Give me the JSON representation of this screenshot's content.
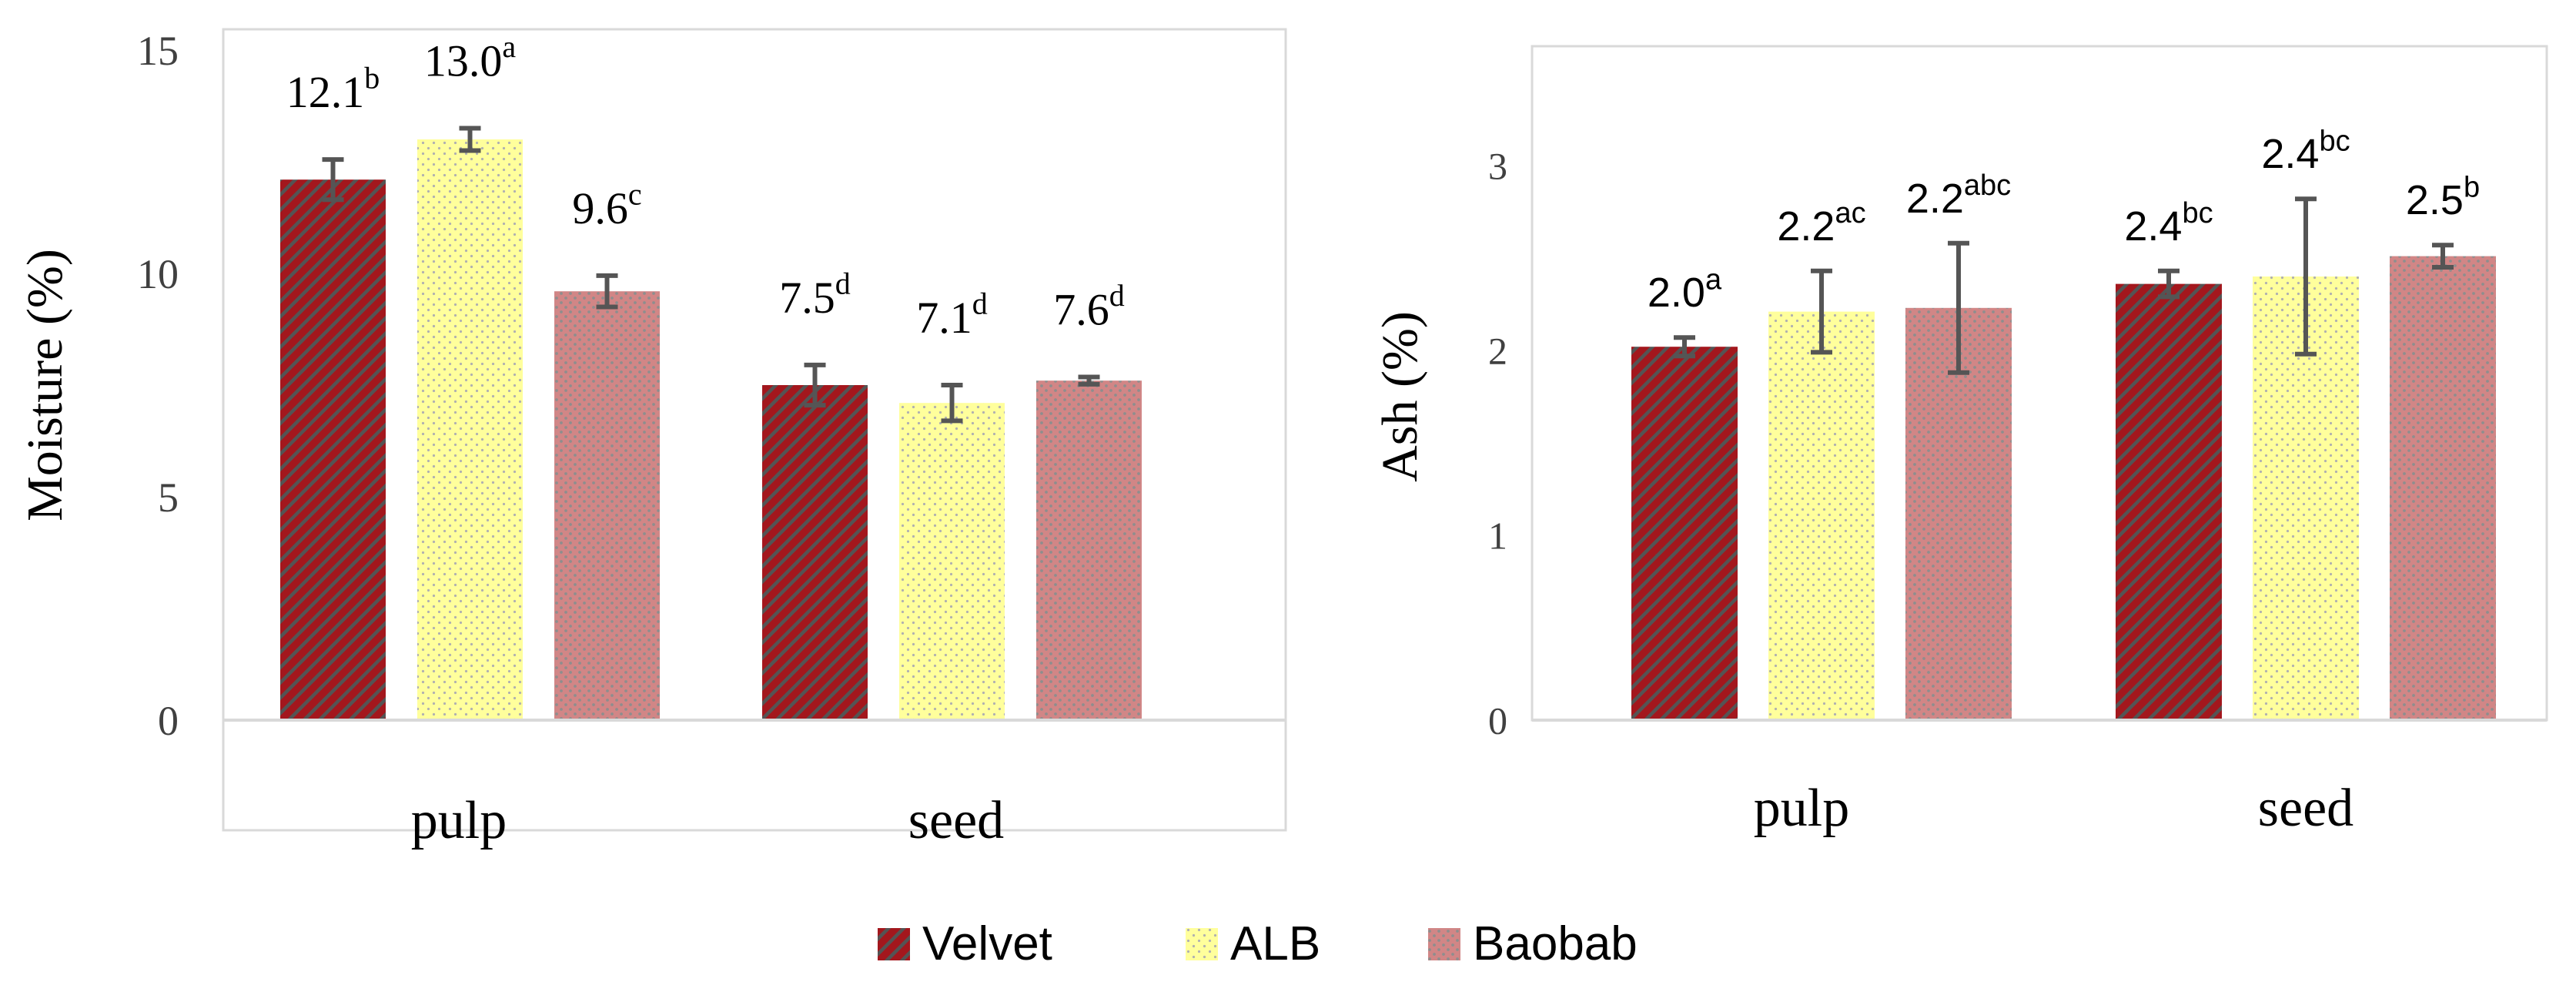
{
  "legend": [
    "Velvet",
    "ALB",
    "Baobab"
  ],
  "colors": {
    "velvet_dark": "#a3171d",
    "velvet_light": "#545454",
    "alb_fill": "#ffff9c",
    "alb_dot": "#b0b0b0",
    "baobab_fill": "#d18686",
    "baobab_dot": "#8e8e8e",
    "error_bar": "#555555",
    "axis_line": "#d9d9d9",
    "frame": "#d9d9d9"
  },
  "chart_data": [
    {
      "type": "bar",
      "title": "",
      "xlabel": "",
      "ylabel": "Moisture (%)",
      "ylim": [
        0,
        15
      ],
      "yticks": [
        "0",
        "5",
        "10",
        "15"
      ],
      "grid": false,
      "legend_position": "bottom",
      "categories": [
        "pulp",
        "seed"
      ],
      "series": [
        {
          "name": "Velvet",
          "values": [
            12.1,
            7.5
          ],
          "errors": [
            0.45,
            0.45
          ],
          "labels": [
            "12.1",
            "7.5"
          ],
          "superscripts": [
            "b",
            "d"
          ]
        },
        {
          "name": "ALB",
          "values": [
            13.0,
            7.1
          ],
          "errors": [
            0.25,
            0.4
          ],
          "labels": [
            "13.0",
            "7.1"
          ],
          "superscripts": [
            "a",
            "d"
          ]
        },
        {
          "name": "Baobab",
          "values": [
            9.6,
            7.6
          ],
          "errors": [
            0.35,
            0.08
          ],
          "labels": [
            "9.6",
            "7.6"
          ],
          "superscripts": [
            "c",
            "d"
          ]
        }
      ]
    },
    {
      "type": "bar",
      "title": "",
      "xlabel": "",
      "ylabel": "Ash (%)",
      "ylim": [
        0,
        3.5
      ],
      "yticks": [
        "0",
        "1",
        "2",
        "3"
      ],
      "grid": false,
      "legend_position": "bottom",
      "categories": [
        "pulp",
        "seed"
      ],
      "series": [
        {
          "name": "Velvet",
          "values": [
            2.02,
            2.36
          ],
          "errors": [
            0.05,
            0.07
          ],
          "labels": [
            "2.0",
            "2.4"
          ],
          "superscripts": [
            "a",
            "bc"
          ]
        },
        {
          "name": "ALB",
          "values": [
            2.21,
            2.4
          ],
          "errors": [
            0.22,
            0.42
          ],
          "labels": [
            "2.2",
            "2.4"
          ],
          "superscripts": [
            "ac",
            "bc"
          ]
        },
        {
          "name": "Baobab",
          "values": [
            2.23,
            2.51
          ],
          "errors": [
            0.35,
            0.06
          ],
          "labels": [
            "2.2",
            "2.5"
          ],
          "superscripts": [
            "abc",
            "b"
          ]
        }
      ]
    }
  ]
}
